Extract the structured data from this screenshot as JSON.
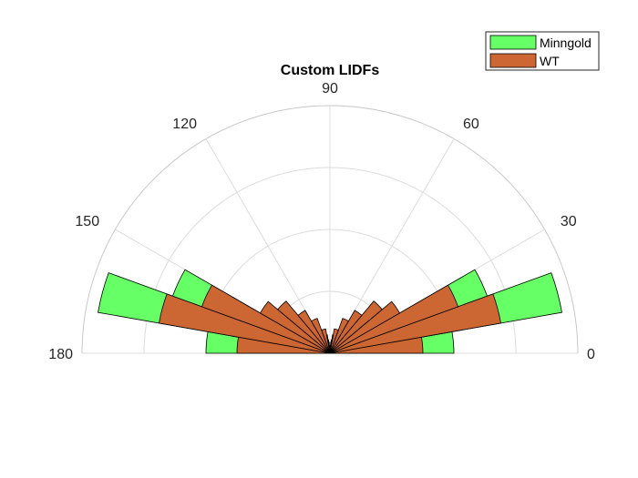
{
  "chart_data": {
    "type": "polar-histogram",
    "title": "Custom LIDFs",
    "theta_tick_labels": [
      "0",
      "30",
      "60",
      "90",
      "120",
      "150",
      "180"
    ],
    "theta_ticks_deg": [
      0,
      30,
      60,
      90,
      120,
      150,
      180
    ],
    "theta_range_deg": [
      0,
      180
    ],
    "r_max": 0.4,
    "r_grid": [
      0.1,
      0.2,
      0.3,
      0.4
    ],
    "grid": true,
    "bin_edges_deg": [
      0,
      10,
      20,
      30,
      40,
      50,
      60,
      70,
      80,
      82,
      84,
      86,
      88,
      90
    ],
    "legend_position": "top-right",
    "series": [
      {
        "name": "Minngold",
        "color": "#66ff66",
        "values": [
          0.2,
          0.38,
          0.27,
          0.04,
          0.025,
          0.02,
          0.012,
          0.01,
          0.008,
          0.008,
          0.007,
          0.006,
          0.006
        ]
      },
      {
        "name": "WT",
        "color": "#cc6633",
        "values": [
          0.15,
          0.28,
          0.22,
          0.13,
          0.11,
          0.08,
          0.06,
          0.04,
          0.03,
          0.022,
          0.018,
          0.012,
          0.008
        ]
      }
    ]
  }
}
